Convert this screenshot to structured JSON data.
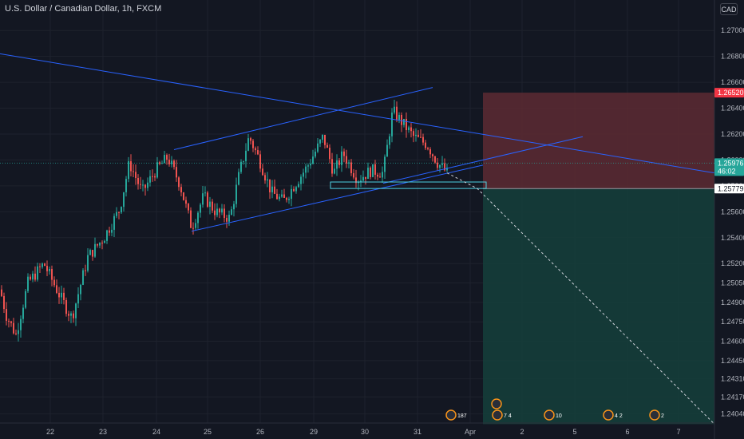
{
  "header": {
    "title": "U.S. Dollar / Canadian Dollar, 1h, FXCM",
    "currency": "CAD"
  },
  "colors": {
    "background": "#131722",
    "grid": "#1e222d",
    "bull": "#26a69a",
    "bear": "#ef5350",
    "trendline": "#2962ff",
    "stop_zone": "#5d2a33",
    "target_zone": "#153d3a",
    "last_price_tag": "#26a69a",
    "stop_tag": "#f23645",
    "entry_tag": "#ffffff"
  },
  "chart_data": {
    "type": "candlestick",
    "symbol": "USDCAD",
    "interval": "1h",
    "source": "FXCM",
    "ylim": [
      1.2403,
      1.271
    ],
    "y_ticks": [
      "1.27000",
      "1.26800",
      "1.26600",
      "1.26400",
      "1.26200",
      "1.26000",
      "1.25800",
      "1.25600",
      "1.25400",
      "1.25200",
      "1.25050",
      "1.24900",
      "1.24750",
      "1.24600",
      "1.24450",
      "1.24310",
      "1.24170",
      "1.24040"
    ],
    "x_ticks": [
      "22",
      "23",
      "24",
      "25",
      "26",
      "29",
      "30",
      "31",
      "Apr",
      "2",
      "5",
      "6",
      "7"
    ],
    "price_tags": {
      "stop": "1.26520",
      "last": "1.25976",
      "countdown": "46:02",
      "entry": "1.25779"
    },
    "key_path": [
      [
        0,
        1.25
      ],
      [
        8,
        1.248
      ],
      [
        20,
        1.2465
      ],
      [
        35,
        1.2505
      ],
      [
        55,
        1.252
      ],
      [
        75,
        1.2495
      ],
      [
        90,
        1.2478
      ],
      [
        110,
        1.2525
      ],
      [
        130,
        1.254
      ],
      [
        150,
        1.2562
      ],
      [
        162,
        1.2598
      ],
      [
        178,
        1.2575
      ],
      [
        195,
        1.2592
      ],
      [
        210,
        1.2602
      ],
      [
        225,
        1.2582
      ],
      [
        240,
        1.2548
      ],
      [
        255,
        1.2572
      ],
      [
        270,
        1.256
      ],
      [
        288,
        1.2555
      ],
      [
        300,
        1.259
      ],
      [
        312,
        1.2618
      ],
      [
        325,
        1.26
      ],
      [
        340,
        1.2575
      ],
      [
        355,
        1.2568
      ],
      [
        368,
        1.258
      ],
      [
        385,
        1.2595
      ],
      [
        405,
        1.2618
      ],
      [
        418,
        1.259
      ],
      [
        430,
        1.2605
      ],
      [
        448,
        1.2585
      ],
      [
        465,
        1.2592
      ],
      [
        480,
        1.259
      ],
      [
        492,
        1.2638
      ],
      [
        505,
        1.2628
      ],
      [
        518,
        1.2618
      ],
      [
        535,
        1.2612
      ],
      [
        548,
        1.2598
      ],
      [
        560,
        1.259
      ]
    ],
    "bar_spacing_px": 3,
    "stop_price": 1.2652,
    "last_price": 1.25976,
    "entry_price": 1.25779,
    "target_price": 1.2396,
    "channel_upper": [
      [
        1.261,
        1.2656
      ]
    ],
    "drawings": [
      "descending trendline",
      "rising wedge channel",
      "support box",
      "short position tool",
      "projected path"
    ],
    "events": [
      {
        "label": "187"
      },
      {
        "label": "7 4"
      },
      {
        "label": "10"
      },
      {
        "label": "4 2"
      },
      {
        "label": "2"
      }
    ]
  }
}
